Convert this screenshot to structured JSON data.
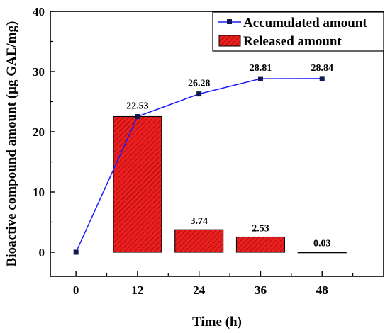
{
  "chart_data": {
    "type": "bar+line",
    "xlabel": "Time (h)",
    "ylabel": "Bioactive compound amount (µg GAE/mg)",
    "x_ticks": [
      "0",
      "12",
      "24",
      "36",
      "48"
    ],
    "y_ticks": [
      "0",
      "10",
      "20",
      "30",
      "40"
    ],
    "xlim": [
      -5,
      60
    ],
    "ylim": [
      -4,
      40
    ],
    "grid": false,
    "legend_position": "top-right",
    "series": [
      {
        "name": "Accumulated amount",
        "type": "line",
        "color": "#1a1aff",
        "marker_color": "#0d1a4a",
        "x": [
          0,
          12,
          24,
          36,
          48
        ],
        "values": [
          0,
          22.53,
          26.28,
          28.81,
          28.84
        ],
        "labels": [
          "",
          "22.53",
          "26.28",
          "28.81",
          "28.84"
        ]
      },
      {
        "name": "Released amount",
        "type": "bar",
        "color": "#e8000b",
        "pattern": "diagonal-hatch",
        "x": [
          12,
          24,
          36,
          48
        ],
        "values": [
          22.53,
          3.74,
          2.53,
          0.03
        ],
        "labels": [
          "",
          "3.74",
          "2.53",
          "0.03"
        ]
      }
    ]
  }
}
